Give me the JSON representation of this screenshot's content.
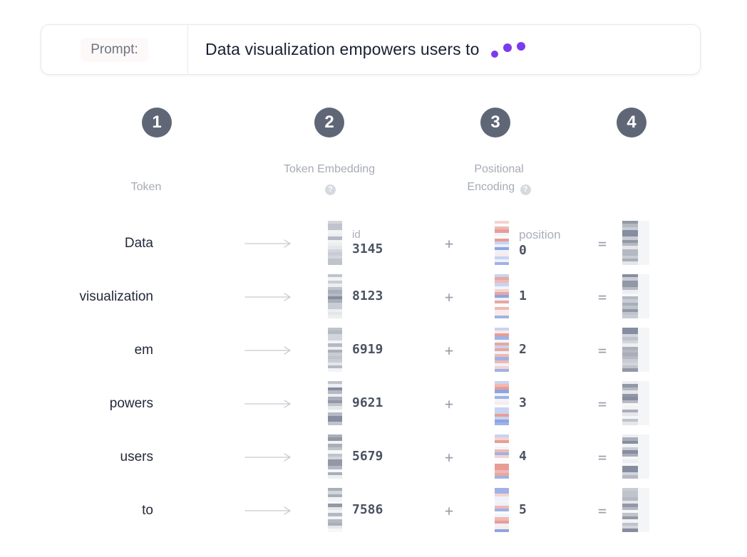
{
  "prompt": {
    "label": "Prompt:",
    "text": "Data visualization empowers users to"
  },
  "steps": [
    {
      "number": "1",
      "title": "Token",
      "has_help": false
    },
    {
      "number": "2",
      "title": "Token Embedding",
      "has_help": true
    },
    {
      "number": "3",
      "title": "Positional Encoding",
      "has_help": true
    },
    {
      "number": "4",
      "title": "",
      "has_help": false
    }
  ],
  "icons": {
    "help": "?"
  },
  "field_labels": {
    "id": "id",
    "position": "position"
  },
  "operators": {
    "plus": "+",
    "equals": "="
  },
  "rows": [
    {
      "token": "Data",
      "id": "3145",
      "position": "0"
    },
    {
      "token": "visualization",
      "id": "8123",
      "position": "1"
    },
    {
      "token": "em",
      "id": "6919",
      "position": "2"
    },
    {
      "token": "powers",
      "id": "9621",
      "position": "3"
    },
    {
      "token": "users",
      "id": "5679",
      "position": "4"
    },
    {
      "token": "to",
      "id": "7586",
      "position": "5"
    }
  ],
  "colors": {
    "accent_purple": "#7c3aed",
    "step_circle_bg": "#5f6777",
    "token_text": "#232a3a",
    "number_text": "#4b5363",
    "muted_label": "#a9aeb9",
    "arrow": "#c6c9d0",
    "output_panel": "#f4f5f7",
    "gray_palette": [
      "#f2f3f5",
      "#e4e6ea",
      "#d2d5db",
      "#bfc3cc",
      "#a9aeb9",
      "#9298a5",
      "#878da0",
      "#eceef1",
      "#c8ccd4",
      "#b4b9c3",
      "#f6f7f8"
    ],
    "positional_palette": [
      "#f9ebe9",
      "#f0b9b2",
      "#e79d95",
      "#f5d3cf",
      "#c8d3f1",
      "#9fb2e6",
      "#8da4e2",
      "#fbfbfd",
      "#eef1fa",
      "#e7a79f",
      "#f1f4fb"
    ]
  }
}
